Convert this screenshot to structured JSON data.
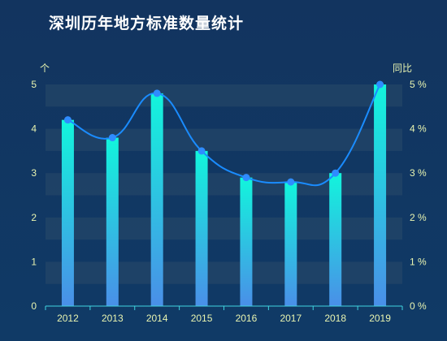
{
  "title": "深圳历年地方标准数量统计",
  "chart_data": {
    "type": "bar",
    "categories": [
      "2012",
      "2013",
      "2014",
      "2015",
      "2016",
      "2017",
      "2018",
      "2019"
    ],
    "series": [
      {
        "type": "bar",
        "values": [
          4.2,
          3.8,
          4.8,
          3.5,
          2.9,
          2.8,
          3.0,
          5.0
        ],
        "axis": "left"
      },
      {
        "type": "line",
        "values": [
          4.2,
          3.8,
          4.8,
          3.5,
          2.9,
          2.8,
          3.0,
          5.0
        ],
        "axis": "right",
        "smooth": true
      }
    ],
    "ylabel_left": "个",
    "ylabel_right": "同比",
    "ylim_left": [
      0,
      5
    ],
    "ylim_right": [
      0,
      5
    ],
    "yticks_left": [
      "0",
      "1",
      "2",
      "3",
      "4",
      "5"
    ],
    "yticks_right": [
      "0 %",
      "1 %",
      "2 %",
      "3 %",
      "4 %",
      "5 %"
    ],
    "grid": "alternating horizontal bands",
    "colors": {
      "bar_top": "#12f5dc",
      "bar_bottom": "#4a8fe8",
      "line": "#1a8cff",
      "marker": "#2f8cff",
      "band": "#2a4a6a",
      "axis_text": "#e8f4b0",
      "axis_line": "#3fd5e0"
    }
  }
}
